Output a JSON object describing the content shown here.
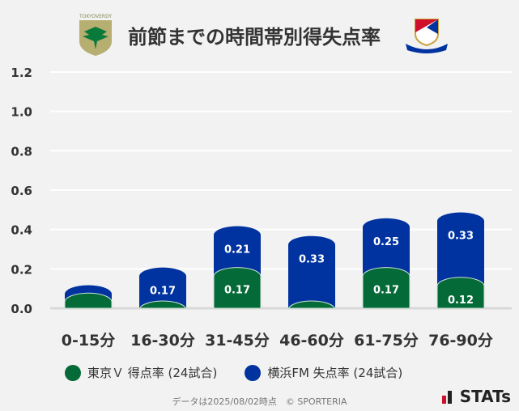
{
  "title": "前節までの時間帯別得失点率",
  "logos": {
    "left": "TOKYO VERDY",
    "right": "Yokohama F·Marinos"
  },
  "colors": {
    "green": "#046a38",
    "blue": "#0033a0"
  },
  "chart_data": {
    "type": "bar",
    "stacked": true,
    "categories": [
      "0-15分",
      "16-30分",
      "31-45分",
      "46-60分",
      "61-75分",
      "76-90分"
    ],
    "series": [
      {
        "name": "東京Ｖ 得点率 (24試合)",
        "values": [
          0.04,
          0,
          0.17,
          0,
          0.17,
          0.12
        ],
        "labels": [
          "",
          "",
          "0.17",
          "",
          "0.17",
          "0.12"
        ],
        "color": "#046a38"
      },
      {
        "name": "横浜FM 失点率 (24試合)",
        "values": [
          0.04,
          0.17,
          0.21,
          0.33,
          0.25,
          0.33
        ],
        "labels": [
          "",
          "0.17",
          "0.21",
          "0.33",
          "0.25",
          "0.33"
        ],
        "color": "#0033a0"
      }
    ],
    "ylim": [
      0,
      1.2
    ],
    "yticks": [
      "0.0",
      "0.2",
      "0.4",
      "0.6",
      "0.8",
      "1.0",
      "1.2"
    ],
    "grid": true,
    "legend": "bottom"
  },
  "footer": "データは2025/08/02時点　© SPORTERIA",
  "brand": "STATs"
}
